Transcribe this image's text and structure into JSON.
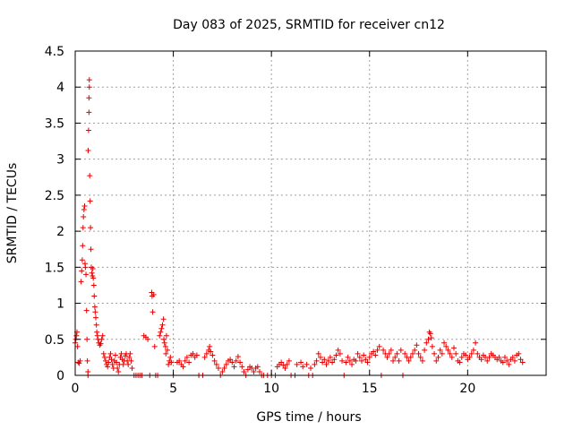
{
  "chart_data": {
    "type": "scatter",
    "title": "Day 083 of 2025, SRMTID for receiver cn12",
    "xlabel": "GPS time / hours",
    "ylabel": "SRMTID / TECUs",
    "xlim": [
      0,
      24
    ],
    "ylim": [
      0,
      4.5
    ],
    "grid": true,
    "marker": "+",
    "marker_color": "#e60000",
    "x_ticks": [
      0,
      5,
      10,
      15,
      20
    ],
    "x_tick_labels": [
      "0",
      "5",
      "10",
      "15",
      "20"
    ],
    "y_ticks": [
      0,
      0.5,
      1,
      1.5,
      2,
      2.5,
      3,
      3.5,
      4,
      4.5
    ],
    "y_tick_labels": [
      "0",
      "0.5",
      "1",
      "1.5",
      "2",
      "2.5",
      "3",
      "3.5",
      "4",
      "4.5"
    ],
    "series": [
      {
        "name": "cn12",
        "points": [
          [
            0.0,
            0.45
          ],
          [
            0.03,
            0.5
          ],
          [
            0.06,
            0.55
          ],
          [
            0.09,
            0.6
          ],
          [
            0.12,
            0.4
          ],
          [
            0.15,
            0.18
          ],
          [
            0.2,
            0.17
          ],
          [
            0.25,
            0.2
          ],
          [
            0.3,
            1.3
          ],
          [
            0.33,
            1.45
          ],
          [
            0.36,
            1.6
          ],
          [
            0.38,
            1.8
          ],
          [
            0.4,
            2.05
          ],
          [
            0.42,
            2.2
          ],
          [
            0.45,
            2.3
          ],
          [
            0.48,
            2.35
          ],
          [
            0.5,
            1.55
          ],
          [
            0.52,
            1.5
          ],
          [
            0.55,
            1.4
          ],
          [
            0.58,
            0.9
          ],
          [
            0.6,
            0.5
          ],
          [
            0.62,
            0.2
          ],
          [
            0.65,
            0.05
          ],
          [
            0.65,
            0.0
          ],
          [
            0.66,
            3.12
          ],
          [
            0.68,
            3.4
          ],
          [
            0.7,
            3.65
          ],
          [
            0.7,
            3.85
          ],
          [
            0.72,
            4.0
          ],
          [
            0.72,
            4.1
          ],
          [
            0.74,
            2.77
          ],
          [
            0.76,
            2.42
          ],
          [
            0.78,
            2.05
          ],
          [
            0.8,
            1.75
          ],
          [
            0.82,
            1.5
          ],
          [
            0.85,
            1.42
          ],
          [
            0.88,
            1.38
          ],
          [
            0.9,
            1.48
          ],
          [
            0.92,
            1.35
          ],
          [
            0.95,
            1.25
          ],
          [
            0.97,
            1.1
          ],
          [
            1.0,
            0.95
          ],
          [
            1.02,
            0.88
          ],
          [
            1.05,
            0.8
          ],
          [
            1.08,
            0.7
          ],
          [
            1.1,
            0.6
          ],
          [
            1.13,
            0.55
          ],
          [
            1.16,
            0.5
          ],
          [
            1.2,
            0.45
          ],
          [
            1.25,
            0.42
          ],
          [
            1.3,
            0.44
          ],
          [
            1.35,
            0.5
          ],
          [
            1.4,
            0.55
          ],
          [
            1.45,
            0.3
          ],
          [
            1.5,
            0.25
          ],
          [
            1.55,
            0.2
          ],
          [
            1.6,
            0.15
          ],
          [
            1.65,
            0.12
          ],
          [
            1.7,
            0.18
          ],
          [
            1.75,
            0.25
          ],
          [
            1.8,
            0.3
          ],
          [
            1.85,
            0.22
          ],
          [
            1.9,
            0.15
          ],
          [
            1.95,
            0.1
          ],
          [
            2.0,
            0.2
          ],
          [
            2.05,
            0.28
          ],
          [
            2.1,
            0.18
          ],
          [
            2.15,
            0.1
          ],
          [
            2.2,
            0.05
          ],
          [
            2.25,
            0.15
          ],
          [
            2.3,
            0.25
          ],
          [
            2.35,
            0.3
          ],
          [
            2.4,
            0.22
          ],
          [
            2.45,
            0.15
          ],
          [
            2.5,
            0.2
          ],
          [
            2.55,
            0.27
          ],
          [
            2.6,
            0.3
          ],
          [
            2.65,
            0.2
          ],
          [
            2.7,
            0.15
          ],
          [
            2.75,
            0.25
          ],
          [
            2.8,
            0.3
          ],
          [
            2.85,
            0.2
          ],
          [
            2.9,
            0.1
          ],
          [
            3.0,
            0.0
          ],
          [
            3.1,
            0.0
          ],
          [
            3.2,
            0.0
          ],
          [
            3.3,
            0.0
          ],
          [
            3.4,
            0.0
          ],
          [
            3.5,
            0.55
          ],
          [
            3.6,
            0.53
          ],
          [
            3.7,
            0.5
          ],
          [
            3.8,
            0.0
          ],
          [
            3.9,
            1.15
          ],
          [
            3.92,
            1.1
          ],
          [
            3.95,
            0.88
          ],
          [
            4.0,
            1.12
          ],
          [
            4.05,
            0.4
          ],
          [
            4.1,
            0.0
          ],
          [
            4.2,
            0.0
          ],
          [
            4.3,
            0.55
          ],
          [
            4.35,
            0.6
          ],
          [
            4.4,
            0.65
          ],
          [
            4.45,
            0.7
          ],
          [
            4.5,
            0.78
          ],
          [
            4.52,
            0.5
          ],
          [
            4.55,
            0.45
          ],
          [
            4.6,
            0.4
          ],
          [
            4.62,
            0.3
          ],
          [
            4.65,
            0.55
          ],
          [
            4.7,
            0.35
          ],
          [
            4.75,
            0.15
          ],
          [
            4.8,
            0.2
          ],
          [
            4.85,
            0.25
          ],
          [
            4.9,
            0.18
          ],
          [
            5.0,
            0.0
          ],
          [
            5.2,
            0.18
          ],
          [
            5.3,
            0.2
          ],
          [
            5.4,
            0.15
          ],
          [
            5.5,
            0.12
          ],
          [
            5.6,
            0.2
          ],
          [
            5.7,
            0.25
          ],
          [
            5.8,
            0.18
          ],
          [
            5.9,
            0.28
          ],
          [
            6.0,
            0.3
          ],
          [
            6.1,
            0.25
          ],
          [
            6.2,
            0.28
          ],
          [
            6.3,
            0.0
          ],
          [
            6.5,
            0.0
          ],
          [
            6.6,
            0.25
          ],
          [
            6.7,
            0.3
          ],
          [
            6.8,
            0.35
          ],
          [
            6.85,
            0.4
          ],
          [
            6.9,
            0.33
          ],
          [
            7.0,
            0.28
          ],
          [
            7.1,
            0.2
          ],
          [
            7.2,
            0.15
          ],
          [
            7.3,
            0.1
          ],
          [
            7.4,
            0.0
          ],
          [
            7.5,
            0.05
          ],
          [
            7.6,
            0.1
          ],
          [
            7.7,
            0.15
          ],
          [
            7.8,
            0.2
          ],
          [
            7.9,
            0.22
          ],
          [
            8.0,
            0.18
          ],
          [
            8.1,
            0.12
          ],
          [
            8.2,
            0.2
          ],
          [
            8.3,
            0.26
          ],
          [
            8.4,
            0.18
          ],
          [
            8.5,
            0.12
          ],
          [
            8.6,
            0.05
          ],
          [
            8.7,
            0.0
          ],
          [
            8.8,
            0.08
          ],
          [
            8.9,
            0.12
          ],
          [
            9.0,
            0.1
          ],
          [
            9.1,
            0.05
          ],
          [
            9.2,
            0.1
          ],
          [
            9.3,
            0.12
          ],
          [
            9.4,
            0.05
          ],
          [
            9.5,
            0.0
          ],
          [
            9.6,
            0.0
          ],
          [
            9.8,
            0.0
          ],
          [
            10.0,
            0.0
          ],
          [
            10.2,
            0.0
          ],
          [
            10.3,
            0.12
          ],
          [
            10.4,
            0.15
          ],
          [
            10.5,
            0.18
          ],
          [
            10.6,
            0.14
          ],
          [
            10.7,
            0.1
          ],
          [
            10.8,
            0.15
          ],
          [
            10.9,
            0.2
          ],
          [
            11.0,
            0.0
          ],
          [
            11.2,
            0.0
          ],
          [
            11.3,
            0.15
          ],
          [
            11.5,
            0.18
          ],
          [
            11.6,
            0.12
          ],
          [
            11.8,
            0.15
          ],
          [
            11.9,
            0.0
          ],
          [
            12.0,
            0.1
          ],
          [
            12.1,
            0.0
          ],
          [
            12.2,
            0.15
          ],
          [
            12.3,
            0.2
          ],
          [
            12.4,
            0.3
          ],
          [
            12.5,
            0.25
          ],
          [
            12.6,
            0.18
          ],
          [
            12.7,
            0.22
          ],
          [
            12.8,
            0.15
          ],
          [
            12.9,
            0.2
          ],
          [
            13.0,
            0.25
          ],
          [
            13.1,
            0.18
          ],
          [
            13.2,
            0.22
          ],
          [
            13.3,
            0.28
          ],
          [
            13.4,
            0.35
          ],
          [
            13.5,
            0.3
          ],
          [
            13.6,
            0.2
          ],
          [
            13.7,
            0.0
          ],
          [
            13.8,
            0.18
          ],
          [
            13.9,
            0.25
          ],
          [
            14.0,
            0.2
          ],
          [
            14.1,
            0.15
          ],
          [
            14.2,
            0.22
          ],
          [
            14.3,
            0.2
          ],
          [
            14.4,
            0.3
          ],
          [
            14.5,
            0.25
          ],
          [
            14.6,
            0.2
          ],
          [
            14.7,
            0.28
          ],
          [
            14.8,
            0.22
          ],
          [
            14.9,
            0.18
          ],
          [
            15.0,
            0.25
          ],
          [
            15.1,
            0.3
          ],
          [
            15.2,
            0.33
          ],
          [
            15.3,
            0.28
          ],
          [
            15.4,
            0.35
          ],
          [
            15.5,
            0.4
          ],
          [
            15.6,
            0.0
          ],
          [
            15.7,
            0.35
          ],
          [
            15.8,
            0.3
          ],
          [
            15.9,
            0.25
          ],
          [
            16.0,
            0.3
          ],
          [
            16.1,
            0.35
          ],
          [
            16.2,
            0.2
          ],
          [
            16.3,
            0.25
          ],
          [
            16.4,
            0.3
          ],
          [
            16.5,
            0.2
          ],
          [
            16.6,
            0.35
          ],
          [
            16.7,
            0.0
          ],
          [
            16.8,
            0.3
          ],
          [
            16.9,
            0.25
          ],
          [
            17.0,
            0.2
          ],
          [
            17.1,
            0.25
          ],
          [
            17.2,
            0.3
          ],
          [
            17.3,
            0.35
          ],
          [
            17.4,
            0.42
          ],
          [
            17.5,
            0.3
          ],
          [
            17.6,
            0.25
          ],
          [
            17.7,
            0.2
          ],
          [
            17.8,
            0.35
          ],
          [
            17.9,
            0.45
          ],
          [
            18.0,
            0.5
          ],
          [
            18.05,
            0.6
          ],
          [
            18.1,
            0.58
          ],
          [
            18.15,
            0.52
          ],
          [
            18.2,
            0.4
          ],
          [
            18.3,
            0.3
          ],
          [
            18.4,
            0.2
          ],
          [
            18.5,
            0.25
          ],
          [
            18.6,
            0.35
          ],
          [
            18.7,
            0.3
          ],
          [
            18.8,
            0.45
          ],
          [
            18.9,
            0.4
          ],
          [
            19.0,
            0.35
          ],
          [
            19.1,
            0.3
          ],
          [
            19.2,
            0.25
          ],
          [
            19.3,
            0.38
          ],
          [
            19.4,
            0.3
          ],
          [
            19.5,
            0.2
          ],
          [
            19.6,
            0.18
          ],
          [
            19.7,
            0.25
          ],
          [
            19.8,
            0.3
          ],
          [
            19.9,
            0.28
          ],
          [
            20.0,
            0.22
          ],
          [
            20.1,
            0.25
          ],
          [
            20.2,
            0.3
          ],
          [
            20.3,
            0.35
          ],
          [
            20.4,
            0.45
          ],
          [
            20.5,
            0.3
          ],
          [
            20.6,
            0.25
          ],
          [
            20.7,
            0.22
          ],
          [
            20.8,
            0.28
          ],
          [
            20.9,
            0.25
          ],
          [
            21.0,
            0.2
          ],
          [
            21.1,
            0.25
          ],
          [
            21.2,
            0.3
          ],
          [
            21.3,
            0.28
          ],
          [
            21.4,
            0.25
          ],
          [
            21.5,
            0.22
          ],
          [
            21.6,
            0.25
          ],
          [
            21.7,
            0.2
          ],
          [
            21.8,
            0.18
          ],
          [
            21.9,
            0.25
          ],
          [
            22.0,
            0.2
          ],
          [
            22.1,
            0.15
          ],
          [
            22.2,
            0.22
          ],
          [
            22.3,
            0.25
          ],
          [
            22.4,
            0.2
          ],
          [
            22.5,
            0.28
          ],
          [
            22.6,
            0.3
          ],
          [
            22.7,
            0.22
          ],
          [
            22.8,
            0.18
          ]
        ]
      }
    ]
  }
}
